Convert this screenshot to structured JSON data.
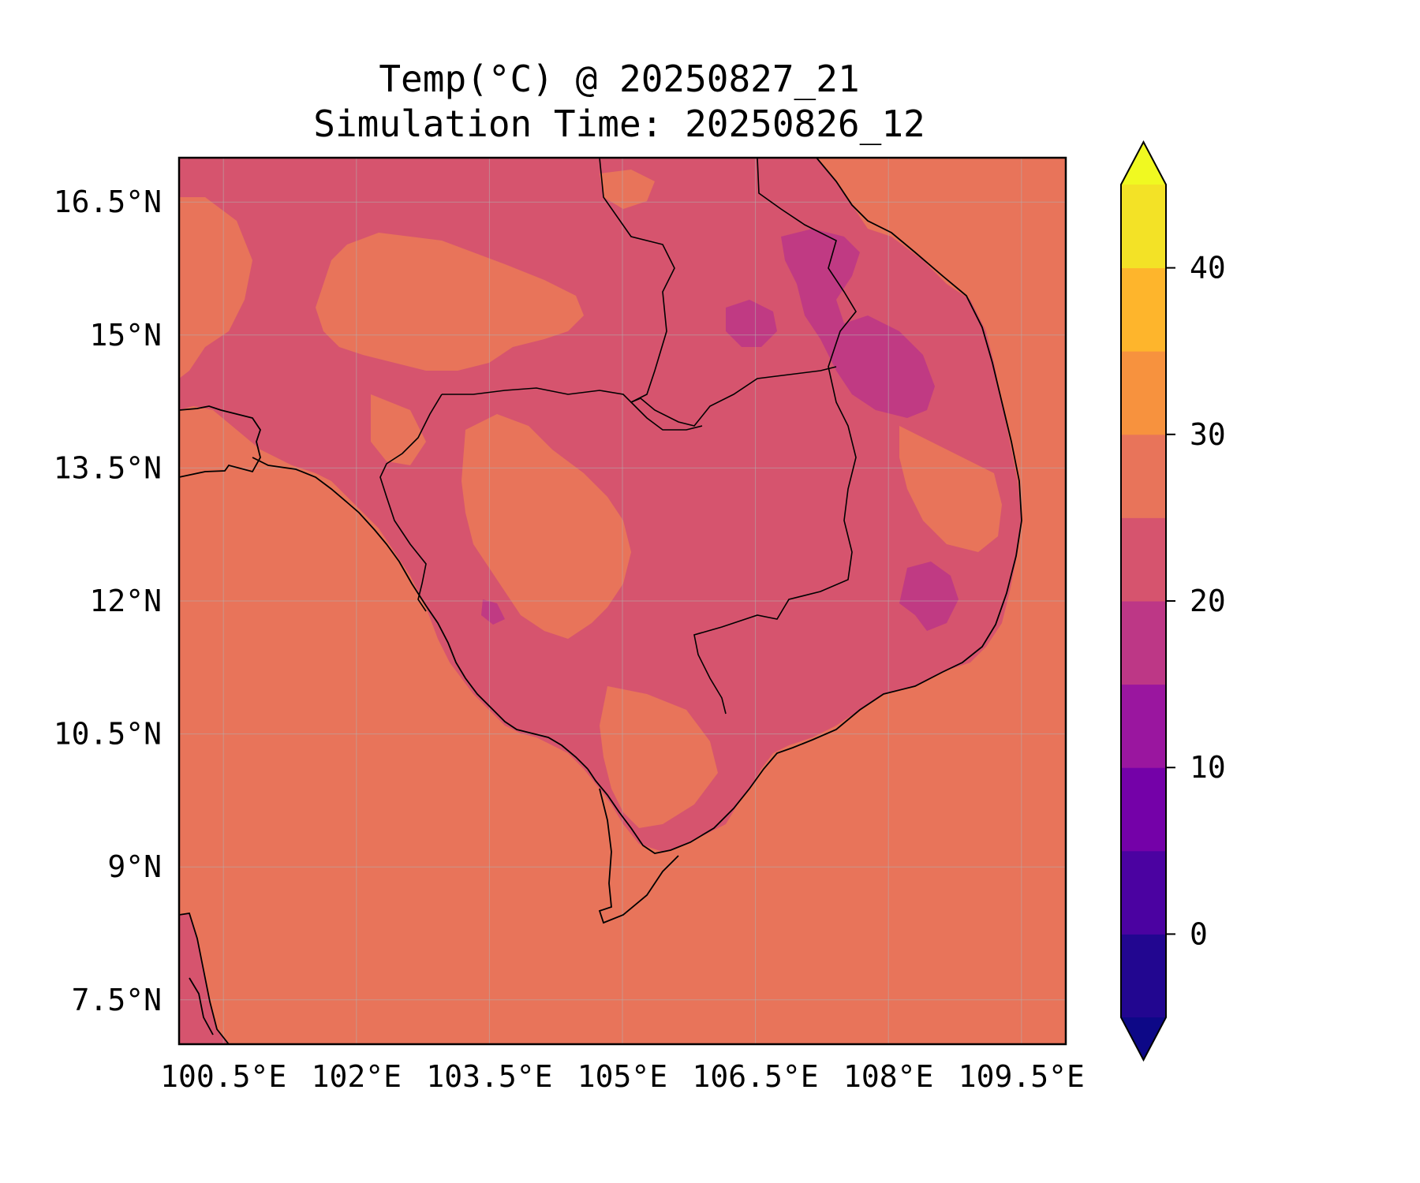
{
  "title": {
    "line1": "Temp(°C) @ 20250827_21",
    "line2": "Simulation Time: 20250826_12"
  },
  "map": {
    "type": "filled-contour-map",
    "variable": "Temp(°C)",
    "region": "Cambodia, southern Vietnam, Laos and eastern Thailand",
    "lon_range": [
      100.0,
      110.0
    ],
    "lat_range": [
      7.0,
      17.0
    ],
    "x_ticks": [
      {
        "value": 100.5,
        "label": "100.5°E"
      },
      {
        "value": 102.0,
        "label": "102°E"
      },
      {
        "value": 103.5,
        "label": "103.5°E"
      },
      {
        "value": 105.0,
        "label": "105°E"
      },
      {
        "value": 106.5,
        "label": "106.5°E"
      },
      {
        "value": 108.0,
        "label": "108°E"
      },
      {
        "value": 109.5,
        "label": "109.5°E"
      }
    ],
    "y_ticks": [
      {
        "value": 16.5,
        "label": "16.5°N"
      },
      {
        "value": 15.0,
        "label": "15°N"
      },
      {
        "value": 13.5,
        "label": "13.5°N"
      },
      {
        "value": 12.0,
        "label": "12°N"
      },
      {
        "value": 10.5,
        "label": "10.5°N"
      },
      {
        "value": 9.0,
        "label": "9°N"
      },
      {
        "value": 7.5,
        "label": "7.5°N"
      }
    ],
    "grid": true,
    "background_band": "25–30",
    "land_band": "20–25",
    "warm_patch_band": "25–30",
    "cool_patch_band": "15–20",
    "colors": {
      "ocean": "#e8745a",
      "land": "#d6546e",
      "cool": "#c03a83",
      "coast": "#000000"
    }
  },
  "colorbar": {
    "levels": [
      -5,
      0,
      5,
      10,
      15,
      20,
      25,
      30,
      35,
      40,
      45
    ],
    "colors": [
      "#220690",
      "#4b02a1",
      "#7401a8",
      "#9a169f",
      "#bd3786",
      "#d6546e",
      "#e8745a",
      "#f7923e",
      "#feb52c",
      "#f3e226"
    ],
    "under_color": "#0d0887",
    "over_color": "#f0f921",
    "tick_values": [
      0,
      10,
      20,
      30,
      40
    ],
    "tick_labels": [
      "0",
      "10",
      "20",
      "30",
      "40"
    ],
    "extend": "both"
  }
}
